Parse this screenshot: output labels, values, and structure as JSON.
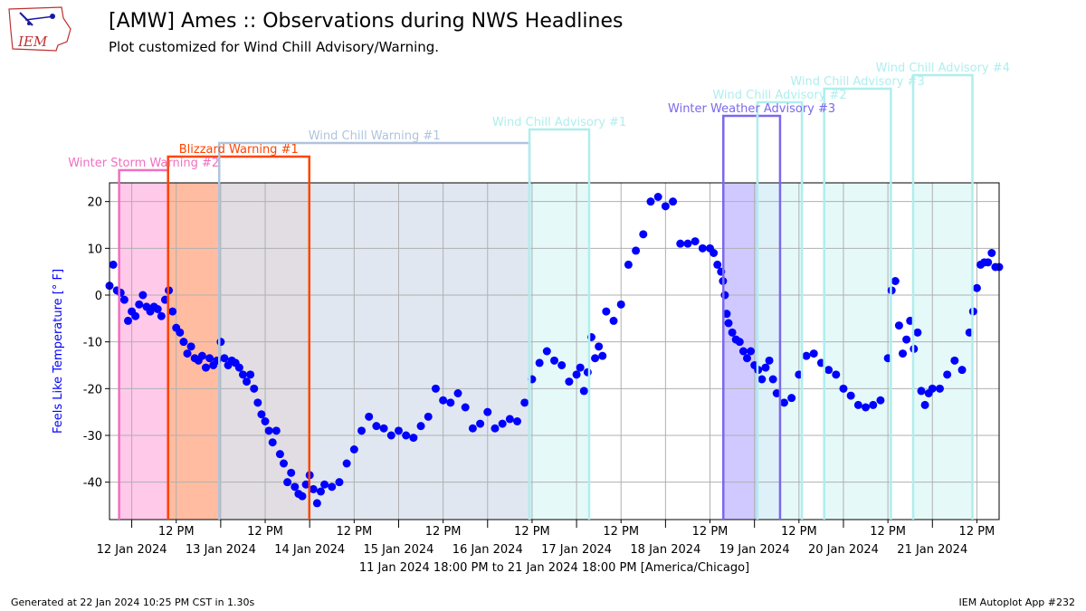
{
  "header": {
    "title": "[AMW] Ames :: Observations during NWS Headlines",
    "subtitle": "Plot customized for Wind Chill Advisory/Warning.",
    "logo_text": "IEM"
  },
  "footer": {
    "left": "Generated at 22 Jan 2024 10:25 PM CST in 1.30s",
    "right": "IEM Autoplot App #232"
  },
  "chart_data": {
    "type": "scatter",
    "xlabel": "11 Jan 2024 18:00 PM to 21 Jan 2024 18:00 PM [America/Chicago]",
    "ylabel": "Feels Like Temperature [° F]",
    "ylim": [
      -48,
      24
    ],
    "xlim_hours": [
      0,
      240
    ],
    "x_unit": "hours since 11 Jan 2024 18:00",
    "yticks": [
      -40,
      -30,
      -20,
      -10,
      0,
      10,
      20
    ],
    "xticks": [
      {
        "hour": 6,
        "label": "12 Jan 2024",
        "major": true
      },
      {
        "hour": 18,
        "label": "12 PM",
        "major": false
      },
      {
        "hour": 30,
        "label": "13 Jan 2024",
        "major": true
      },
      {
        "hour": 42,
        "label": "12 PM",
        "major": false
      },
      {
        "hour": 54,
        "label": "14 Jan 2024",
        "major": true
      },
      {
        "hour": 66,
        "label": "12 PM",
        "major": false
      },
      {
        "hour": 78,
        "label": "15 Jan 2024",
        "major": true
      },
      {
        "hour": 90,
        "label": "12 PM",
        "major": false
      },
      {
        "hour": 102,
        "label": "16 Jan 2024",
        "major": true
      },
      {
        "hour": 114,
        "label": "12 PM",
        "major": false
      },
      {
        "hour": 126,
        "label": "17 Jan 2024",
        "major": true
      },
      {
        "hour": 138,
        "label": "12 PM",
        "major": false
      },
      {
        "hour": 150,
        "label": "18 Jan 2024",
        "major": true
      },
      {
        "hour": 162,
        "label": "12 PM",
        "major": false
      },
      {
        "hour": 174,
        "label": "19 Jan 2024",
        "major": true
      },
      {
        "hour": 186,
        "label": "12 PM",
        "major": false
      },
      {
        "hour": 198,
        "label": "20 Jan 2024",
        "major": true
      },
      {
        "hour": 210,
        "label": "12 PM",
        "major": false
      },
      {
        "hour": 222,
        "label": "21 Jan 2024",
        "major": true
      },
      {
        "hour": 234,
        "label": "12 PM",
        "major": false
      }
    ],
    "grid": true,
    "marker_color": "#0000ff",
    "headlines": [
      {
        "name": "Winter Storm Warning #2",
        "start": 2.6,
        "end": 15.8,
        "fill": "#ffc0e6",
        "edge": "#f06fc0",
        "text": "#f06fc0",
        "level": 0
      },
      {
        "name": "Blizzard Warning #1",
        "start": 15.8,
        "end": 53.9,
        "fill": "#ffb090",
        "edge": "#ff4500",
        "text": "#ff4500",
        "level": 1
      },
      {
        "name": "Wind Chill Warning #1",
        "start": 29.6,
        "end": 113.3,
        "fill": "#dce3ee",
        "edge": "#b0c4de",
        "text": "#b0c4de",
        "level": 2
      },
      {
        "name": "Wind Chill Advisory #1",
        "start": 113.3,
        "end": 129.4,
        "fill": "#e0f8f8",
        "edge": "#afeeee",
        "text": "#afeeee",
        "level": 3
      },
      {
        "name": "Winter Weather Advisory #3",
        "start": 165.6,
        "end": 180.9,
        "fill": "#c8c0ff",
        "edge": "#7b68ee",
        "text": "#7b68ee",
        "level": 4
      },
      {
        "name": "Wind Chill Advisory #2",
        "start": 174.8,
        "end": 186.8,
        "fill": "#e0f8f8",
        "edge": "#afeeee",
        "text": "#afeeee",
        "level": 5
      },
      {
        "name": "Wind Chill Advisory #3",
        "start": 192.8,
        "end": 210.8,
        "fill": "#e0f8f8",
        "edge": "#afeeee",
        "text": "#afeeee",
        "level": 6
      },
      {
        "name": "Wind Chill Advisory #4",
        "start": 216.8,
        "end": 232.8,
        "fill": "#e0f8f8",
        "edge": "#afeeee",
        "text": "#afeeee",
        "level": 7
      }
    ],
    "series": [
      {
        "x": [
          0.0,
          1.0,
          2.0,
          3.0,
          4.0,
          5.0,
          6.0,
          7.0,
          8.0,
          9.0,
          10.0,
          11.0,
          12.0,
          13.0,
          14.0,
          15.0,
          16.0,
          17.0,
          18.0,
          19.0,
          20.0,
          21.0,
          22.0,
          23.0,
          24.0,
          25.0,
          26.0,
          27.0,
          28.0,
          29.0,
          30.0,
          31.0,
          32.0,
          33.0,
          34.0,
          35.0,
          36.0,
          37.0,
          38.0,
          39.0,
          40.0,
          41.0,
          42.0,
          43.0,
          44.0,
          45.0,
          46.0,
          47.0,
          48.0,
          49.0,
          50.0,
          51.0,
          52.0,
          53.0,
          54.0,
          55.0,
          56.0,
          57.0,
          58.0,
          60.0,
          62.0,
          64.0,
          66.0,
          68.0,
          70.0,
          72.0,
          74.0,
          76.0,
          78.0,
          80.0,
          82.0,
          84.0,
          86.0,
          88.0,
          90.0,
          92.0,
          94.0,
          96.0,
          98.0,
          100.0,
          102.0,
          104.0,
          106.0,
          108.0,
          110.0,
          112.0,
          114.0,
          116.0,
          118.0,
          120.0,
          122.0,
          124.0,
          126.0,
          127.0,
          128.0,
          129.0,
          130.0,
          131.0,
          132.0,
          133.0,
          134.0,
          136.0,
          138.0,
          140.0,
          142.0,
          144.0,
          146.0,
          148.0,
          150.0,
          152.0,
          154.0,
          156.0,
          158.0,
          160.0,
          162.0,
          163.0,
          164.0,
          165.0,
          165.5,
          166.0,
          166.5,
          167.0,
          168.0,
          169.0,
          170.0,
          171.0,
          172.0,
          173.0,
          174.0,
          175.0,
          176.0,
          177.0,
          178.0,
          179.0,
          180.0,
          182.0,
          184.0,
          186.0,
          188.0,
          190.0,
          192.0,
          194.0,
          196.0,
          198.0,
          200.0,
          202.0,
          204.0,
          206.0,
          208.0,
          210.0,
          211.0,
          212.0,
          213.0,
          214.0,
          215.0,
          216.0,
          217.0,
          218.0,
          219.0,
          220.0,
          221.0,
          222.0,
          224.0,
          226.0,
          228.0,
          230.0,
          232.0,
          233.0,
          234.0,
          235.0,
          236.0,
          237.0,
          238.0,
          239.0,
          240.0
        ],
        "y": [
          2.0,
          6.5,
          1.0,
          0.5,
          -1.0,
          -5.5,
          -3.5,
          -4.5,
          -2.0,
          0.0,
          -2.5,
          -3.5,
          -2.5,
          -3.0,
          -4.5,
          -1.0,
          1.0,
          -3.5,
          -7.0,
          -8.0,
          -10.0,
          -12.5,
          -11.0,
          -13.5,
          -14.0,
          -13.0,
          -15.5,
          -13.5,
          -15.0,
          -14.0,
          -10.0,
          -13.5,
          -15.0,
          -14.0,
          -14.5,
          -15.5,
          -17.0,
          -18.5,
          -17.0,
          -20.0,
          -23.0,
          -25.5,
          -27.0,
          -29.0,
          -31.5,
          -29.0,
          -34.0,
          -36.0,
          -40.0,
          -38.0,
          -41.0,
          -42.5,
          -43.0,
          -40.5,
          -38.5,
          -41.5,
          -44.5,
          -42.0,
          -40.5,
          -41.0,
          -40.0,
          -36.0,
          -33.0,
          -29.0,
          -26.0,
          -28.0,
          -28.5,
          -30.0,
          -29.0,
          -30.0,
          -30.5,
          -28.0,
          -26.0,
          -20.0,
          -22.5,
          -23.0,
          -21.0,
          -24.0,
          -28.5,
          -27.5,
          -25.0,
          -28.5,
          -27.5,
          -26.5,
          -27.0,
          -23.0,
          -18.0,
          -14.5,
          -12.0,
          -14.0,
          -15.0,
          -18.5,
          -17.0,
          -15.5,
          -20.5,
          -16.5,
          -9.0,
          -13.5,
          -11.0,
          -13.0,
          -3.5,
          -5.5,
          -2.0,
          6.5,
          9.5,
          13.0,
          20.0,
          21.0,
          19.0,
          20.0,
          11.0,
          11.0,
          11.5,
          10.0,
          10.0,
          9.0,
          6.5,
          5.0,
          3.0,
          0.0,
          -4.0,
          -6.0,
          -8.0,
          -9.5,
          -10.0,
          -12.0,
          -13.5,
          -12.0,
          -15.0,
          -16.0,
          -18.0,
          -15.5,
          -14.0,
          -18.0,
          -21.0,
          -23.0,
          -22.0,
          -17.0,
          -13.0,
          -12.5,
          -14.5,
          -16.0,
          -17.0,
          -20.0,
          -21.5,
          -23.5,
          -24.0,
          -23.5,
          -22.5,
          -13.5,
          1.0,
          3.0,
          -6.5,
          -12.5,
          -9.5,
          -5.5,
          -11.5,
          -8.0,
          -20.5,
          -23.5,
          -21.0,
          -20.0,
          -20.0,
          -17.0,
          -14.0,
          -16.0,
          -8.0,
          -3.5,
          1.5,
          6.5,
          7.0,
          7.0,
          9.0,
          6.0,
          6.0
        ]
      }
    ]
  }
}
